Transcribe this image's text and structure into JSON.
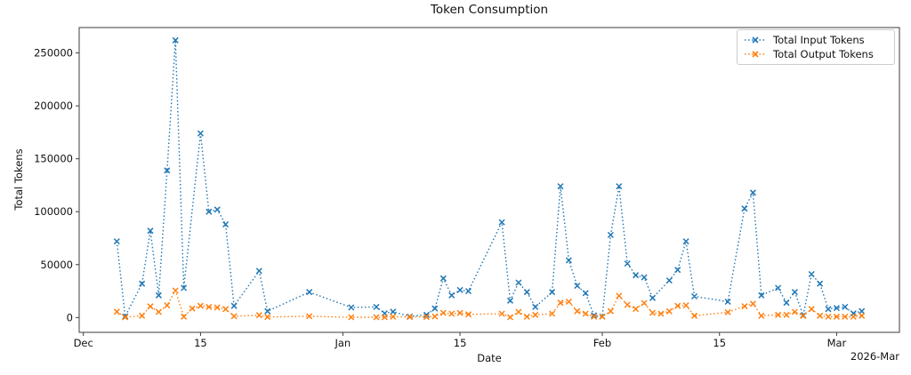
{
  "figure": {
    "background": "#ffffff"
  },
  "chart_data": {
    "type": "line",
    "title": "Token Consumption",
    "xlabel": "Date",
    "ylabel": "Total Tokens",
    "grid": false,
    "legend_position": "upper right",
    "line_style": "dotted",
    "marker": "x",
    "x_axis": {
      "start_date": "2025-12-01",
      "xlim_days": [
        -0.5,
        97.5
      ],
      "offset_label": "2026-Mar",
      "ticks": [
        {
          "date": "2025-12-01",
          "label": "Dec"
        },
        {
          "date": "2025-12-15",
          "label": "15"
        },
        {
          "date": "2026-01-01",
          "label": "Jan"
        },
        {
          "date": "2026-01-15",
          "label": "15"
        },
        {
          "date": "2026-02-01",
          "label": "Feb"
        },
        {
          "date": "2026-02-15",
          "label": "15"
        },
        {
          "date": "2026-03-01",
          "label": "Mar"
        }
      ]
    },
    "y_axis": {
      "ylim": [
        -14000,
        274000
      ],
      "ticks": [
        0,
        50000,
        100000,
        150000,
        200000,
        250000
      ]
    },
    "series": [
      {
        "name": "Total Input Tokens",
        "color": "#1f77b4",
        "points": [
          [
            "2025-12-05",
            72000
          ],
          [
            "2025-12-06",
            1000
          ],
          [
            "2025-12-08",
            32000
          ],
          [
            "2025-12-09",
            82000
          ],
          [
            "2025-12-10",
            21000
          ],
          [
            "2025-12-11",
            139000
          ],
          [
            "2025-12-12",
            262000
          ],
          [
            "2025-12-13",
            28000
          ],
          [
            "2025-12-15",
            174000
          ],
          [
            "2025-12-16",
            100000
          ],
          [
            "2025-12-17",
            102000
          ],
          [
            "2025-12-18",
            88000
          ],
          [
            "2025-12-19",
            11000
          ],
          [
            "2025-12-22",
            44000
          ],
          [
            "2025-12-23",
            6000
          ],
          [
            "2025-12-28",
            24000
          ],
          [
            "2026-01-02",
            9500
          ],
          [
            "2026-01-05",
            10000
          ],
          [
            "2026-01-06",
            4000
          ],
          [
            "2026-01-07",
            5500
          ],
          [
            "2026-01-09",
            1000
          ],
          [
            "2026-01-11",
            2500
          ],
          [
            "2026-01-12",
            8500
          ],
          [
            "2026-01-13",
            37000
          ],
          [
            "2026-01-14",
            21000
          ],
          [
            "2026-01-15",
            26000
          ],
          [
            "2026-01-16",
            25000
          ],
          [
            "2026-01-20",
            90000
          ],
          [
            "2026-01-21",
            16000
          ],
          [
            "2026-01-22",
            33000
          ],
          [
            "2026-01-23",
            24000
          ],
          [
            "2026-01-24",
            10000
          ],
          [
            "2026-01-26",
            24000
          ],
          [
            "2026-01-27",
            124000
          ],
          [
            "2026-01-28",
            54000
          ],
          [
            "2026-01-29",
            30000
          ],
          [
            "2026-01-30",
            23000
          ],
          [
            "2026-01-31",
            2000
          ],
          [
            "2026-02-01",
            1000
          ],
          [
            "2026-02-02",
            78000
          ],
          [
            "2026-02-03",
            124000
          ],
          [
            "2026-02-04",
            51000
          ],
          [
            "2026-02-05",
            40000
          ],
          [
            "2026-02-06",
            38000
          ],
          [
            "2026-02-07",
            18500
          ],
          [
            "2026-02-09",
            35000
          ],
          [
            "2026-02-10",
            45000
          ],
          [
            "2026-02-11",
            72000
          ],
          [
            "2026-02-12",
            20000
          ],
          [
            "2026-02-16",
            15000
          ],
          [
            "2026-02-18",
            103000
          ],
          [
            "2026-02-19",
            118000
          ],
          [
            "2026-02-20",
            21000
          ],
          [
            "2026-02-22",
            28000
          ],
          [
            "2026-02-23",
            14000
          ],
          [
            "2026-02-24",
            24000
          ],
          [
            "2026-02-25",
            2000
          ],
          [
            "2026-02-26",
            41000
          ],
          [
            "2026-02-27",
            32000
          ],
          [
            "2026-02-28",
            8000
          ],
          [
            "2026-03-01",
            9000
          ],
          [
            "2026-03-02",
            10000
          ],
          [
            "2026-03-03",
            4000
          ],
          [
            "2026-03-04",
            6000
          ]
        ]
      },
      {
        "name": "Total Output Tokens",
        "color": "#ff7f0e",
        "points": [
          [
            "2025-12-05",
            5500
          ],
          [
            "2025-12-06",
            300
          ],
          [
            "2025-12-08",
            1700
          ],
          [
            "2025-12-09",
            10500
          ],
          [
            "2025-12-10",
            5300
          ],
          [
            "2025-12-11",
            11500
          ],
          [
            "2025-12-12",
            25500
          ],
          [
            "2025-12-13",
            800
          ],
          [
            "2025-12-14",
            8500
          ],
          [
            "2025-12-15",
            11000
          ],
          [
            "2025-12-16",
            10000
          ],
          [
            "2025-12-17",
            9500
          ],
          [
            "2025-12-18",
            8000
          ],
          [
            "2025-12-19",
            1200
          ],
          [
            "2025-12-22",
            2200
          ],
          [
            "2025-12-23",
            500
          ],
          [
            "2025-12-28",
            1200
          ],
          [
            "2026-01-02",
            300
          ],
          [
            "2026-01-05",
            300
          ],
          [
            "2026-01-06",
            300
          ],
          [
            "2026-01-07",
            800
          ],
          [
            "2026-01-09",
            500
          ],
          [
            "2026-01-11",
            500
          ],
          [
            "2026-01-12",
            1000
          ],
          [
            "2026-01-13",
            4400
          ],
          [
            "2026-01-14",
            3600
          ],
          [
            "2026-01-15",
            4400
          ],
          [
            "2026-01-16",
            3000
          ],
          [
            "2026-01-20",
            3600
          ],
          [
            "2026-01-21",
            300
          ],
          [
            "2026-01-22",
            5300
          ],
          [
            "2026-01-23",
            800
          ],
          [
            "2026-01-24",
            2500
          ],
          [
            "2026-01-26",
            3600
          ],
          [
            "2026-01-27",
            14000
          ],
          [
            "2026-01-28",
            15000
          ],
          [
            "2026-01-29",
            6000
          ],
          [
            "2026-01-30",
            3600
          ],
          [
            "2026-01-31",
            800
          ],
          [
            "2026-02-01",
            800
          ],
          [
            "2026-02-02",
            6000
          ],
          [
            "2026-02-03",
            20500
          ],
          [
            "2026-02-04",
            12000
          ],
          [
            "2026-02-05",
            8200
          ],
          [
            "2026-02-06",
            13700
          ],
          [
            "2026-02-07",
            4500
          ],
          [
            "2026-02-08",
            3600
          ],
          [
            "2026-02-09",
            5900
          ],
          [
            "2026-02-10",
            11000
          ],
          [
            "2026-02-11",
            11500
          ],
          [
            "2026-02-12",
            1700
          ],
          [
            "2026-02-16",
            5000
          ],
          [
            "2026-02-18",
            10700
          ],
          [
            "2026-02-19",
            13000
          ],
          [
            "2026-02-20",
            1700
          ],
          [
            "2026-02-22",
            2500
          ],
          [
            "2026-02-23",
            2500
          ],
          [
            "2026-02-24",
            5300
          ],
          [
            "2026-02-25",
            1500
          ],
          [
            "2026-02-26",
            8000
          ],
          [
            "2026-02-27",
            1700
          ],
          [
            "2026-02-28",
            800
          ],
          [
            "2026-03-01",
            800
          ],
          [
            "2026-03-02",
            800
          ],
          [
            "2026-03-03",
            800
          ],
          [
            "2026-03-04",
            1700
          ]
        ]
      }
    ]
  }
}
